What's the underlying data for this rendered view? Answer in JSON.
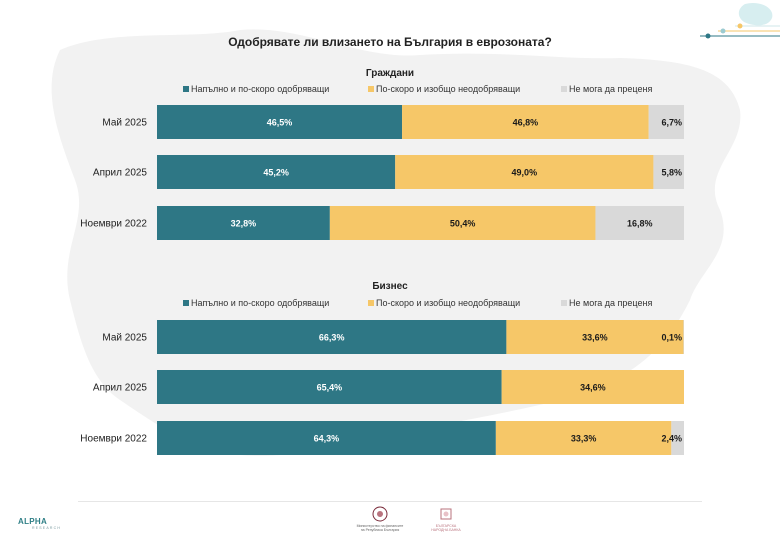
{
  "title": "Одобрявате ли влизането на България в еврозоната?",
  "colors": {
    "approve": "#2e7785",
    "disapprove": "#f6c768",
    "undecided": "#d9d9d9",
    "approve_text": "#ffffff",
    "other_text": "#1a1a1a"
  },
  "chart_data": [
    {
      "type": "bar",
      "orientation": "horizontal",
      "stacked": "100%",
      "title": "Граждани",
      "legend_position": "top",
      "categories": [
        "Май 2025",
        "Април 2025",
        "Ноември 2022"
      ],
      "series": [
        {
          "name": "Напълно и по-скоро одобряващи",
          "values": [
            46.5,
            45.2,
            32.8
          ],
          "labels": [
            "46,5%",
            "45,2%",
            "32,8%"
          ]
        },
        {
          "name": "По-скоро и изобщо неодобряващи",
          "values": [
            46.8,
            49.0,
            50.4
          ],
          "labels": [
            "46,8%",
            "49,0%",
            "50,4%"
          ]
        },
        {
          "name": "Не мога да преценя",
          "values": [
            6.7,
            5.8,
            16.8
          ],
          "labels": [
            "6,7%",
            "5,8%",
            "16,8%"
          ]
        }
      ]
    },
    {
      "type": "bar",
      "orientation": "horizontal",
      "stacked": "100%",
      "title": "Бизнес",
      "legend_position": "top",
      "categories": [
        "Май 2025",
        "Април 2025",
        "Ноември 2022"
      ],
      "series": [
        {
          "name": "Напълно и по-скоро одобряващи",
          "values": [
            66.3,
            65.4,
            64.3
          ],
          "labels": [
            "66,3%",
            "65,4%",
            "64,3%"
          ]
        },
        {
          "name": "По-скоро и изобщо неодобряващи",
          "values": [
            33.6,
            34.6,
            33.3
          ],
          "labels": [
            "33,6%",
            "34,6%",
            "33,3%"
          ]
        },
        {
          "name": "Не мога да преценя",
          "values": [
            0.1,
            0.0,
            2.4
          ],
          "labels": [
            "0,1%",
            "",
            "2,4%"
          ]
        }
      ]
    }
  ],
  "footer": {
    "alpha_logo": "ALPHA",
    "alpha_sub": "RESEARCH",
    "ministry": "Министерство на финансите на Република България",
    "bnb": "БЪЛГАРСКА НАРОДНА БАНКА"
  }
}
